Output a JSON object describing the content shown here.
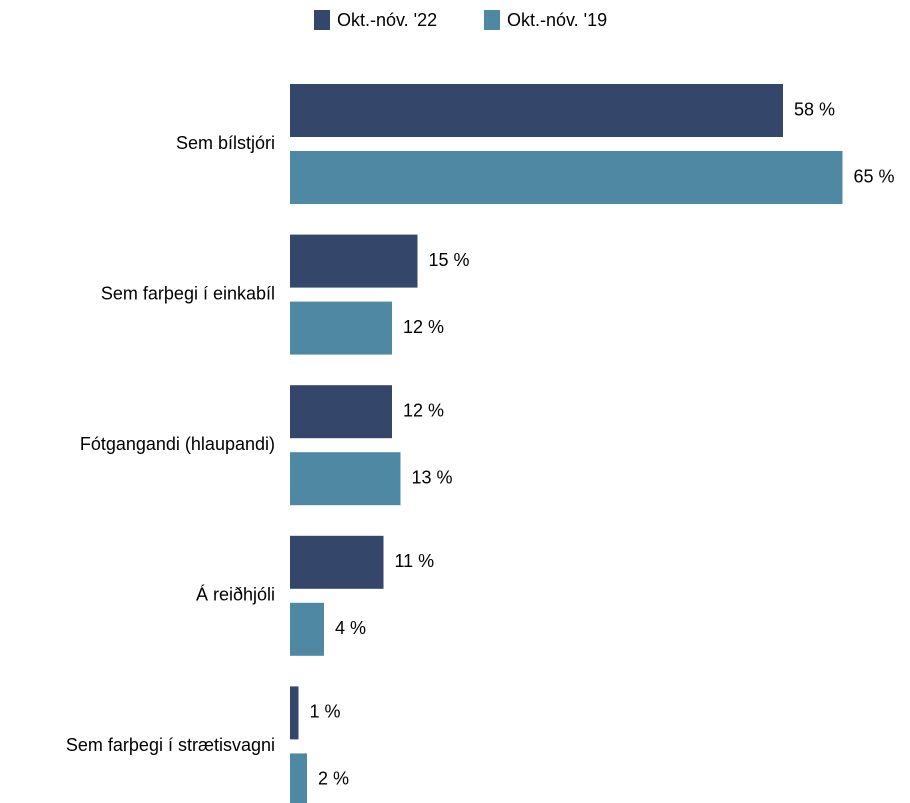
{
  "chart_data": {
    "type": "bar",
    "orientation": "horizontal",
    "categories": [
      "Sem bílstjóri",
      "Sem farþegi í einkabíl",
      "Fótgangandi (hlaupandi)",
      "Á reiðhjóli",
      "Sem farþegi í strætisvagni"
    ],
    "series": [
      {
        "name": "Okt.-nóv. '22",
        "color": "#34466a",
        "values": [
          58,
          15,
          12,
          11,
          1
        ],
        "value_labels": [
          "58 %",
          "15 %",
          "12 %",
          "11 %",
          "1 %"
        ]
      },
      {
        "name": "Okt.-nóv. '19",
        "color": "#4f88a2",
        "values": [
          65,
          12,
          13,
          4,
          2
        ],
        "value_labels": [
          "65 %",
          "12 %",
          "13 %",
          "4 %",
          "2 %"
        ]
      }
    ],
    "legend": "top"
  }
}
